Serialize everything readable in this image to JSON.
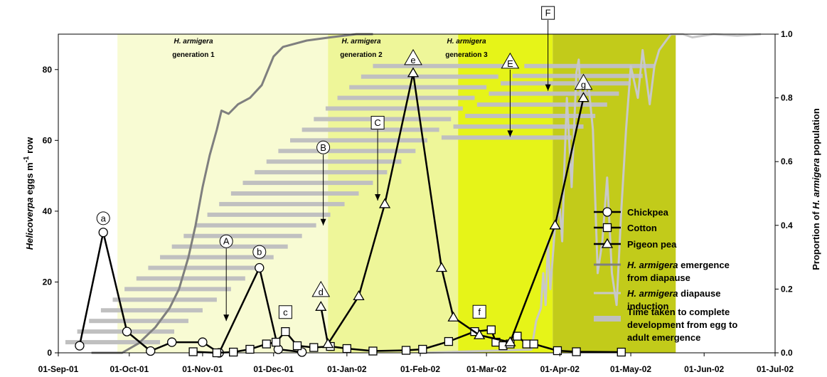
{
  "chart_data": {
    "type": "line",
    "x_axis": {
      "ticks": [
        "01-Sep-01",
        "01-Oct-01",
        "01-Nov-01",
        "01-Dec-01",
        "01-Jan-02",
        "01-Feb-02",
        "01-Mar-02",
        "01-Apr-02",
        "01-May-02",
        "01-Jun-02",
        "01-Jul-02"
      ],
      "range": [
        "2001-09-01",
        "2002-07-01"
      ]
    },
    "y_left": {
      "label_italic": "Helicoverpa",
      "label_rest": " eggs m",
      "label_sup": "-1",
      "label_end": " row",
      "ylim": [
        0,
        90
      ],
      "ticks": [
        "0",
        "20",
        "40",
        "60",
        "80"
      ]
    },
    "y_right": {
      "label_start": "Proportion of ",
      "label_italic": "H. armigera",
      "label_end": " population",
      "ylim": [
        0,
        1.0
      ],
      "ticks": [
        "0.0",
        "0.2",
        "0.4",
        "0.6",
        "0.8",
        "1.0"
      ]
    },
    "generations": [
      {
        "label_italic": "H. armigera",
        "label": "generation 1",
        "start": "2001-09-26",
        "end": "2001-12-24",
        "color": "#f8fbd3"
      },
      {
        "label_italic": "H. armigera",
        "label": "generation 2",
        "start": "2001-12-24",
        "end": "2002-02-17",
        "color": "#eef699"
      },
      {
        "label_italic": "H. armigera",
        "label": "generation 3",
        "start": "2002-02-17",
        "end": "2002-03-29",
        "color": "#e6f418"
      },
      {
        "label_italic": "",
        "label": "",
        "start": "2002-03-29",
        "end": "2002-05-20",
        "color": "#c2cb1a"
      }
    ],
    "series": [
      {
        "name": "Chickpea",
        "marker": "circle",
        "points": [
          [
            "2001-09-10",
            2
          ],
          [
            "2001-09-20",
            34
          ],
          [
            "2001-09-30",
            6
          ],
          [
            "2001-10-10",
            0.5
          ],
          [
            "2001-10-19",
            3
          ],
          [
            "2001-11-01",
            3
          ],
          [
            "2001-11-08",
            0
          ],
          [
            "2001-11-25",
            24
          ],
          [
            "2001-12-03",
            1
          ],
          [
            "2001-12-13",
            0.2
          ]
        ]
      },
      {
        "name": "Cotton",
        "marker": "square",
        "points": [
          [
            "2001-10-28",
            0.3
          ],
          [
            "2001-11-07",
            0
          ],
          [
            "2001-11-14",
            0.2
          ],
          [
            "2001-11-21",
            1
          ],
          [
            "2001-11-28",
            2.5
          ],
          [
            "2001-12-02",
            3
          ],
          [
            "2001-12-06",
            6
          ],
          [
            "2001-12-11",
            2
          ],
          [
            "2001-12-18",
            1.5
          ],
          [
            "2001-12-25",
            1.8
          ],
          [
            "2002-01-01",
            1.2
          ],
          [
            "2002-01-12",
            0.5
          ],
          [
            "2002-01-26",
            0.7
          ],
          [
            "2002-02-02",
            1
          ],
          [
            "2002-02-13",
            3.2
          ],
          [
            "2002-02-24",
            6
          ],
          [
            "2002-03-03",
            6.5
          ],
          [
            "2002-03-05",
            3
          ],
          [
            "2002-03-08",
            2
          ],
          [
            "2002-03-11",
            2.5
          ],
          [
            "2002-03-14",
            4.7
          ],
          [
            "2002-03-18",
            2.5
          ],
          [
            "2002-03-21",
            2.5
          ],
          [
            "2002-03-31",
            0.6
          ],
          [
            "2002-04-08",
            0.3
          ],
          [
            "2002-04-27",
            0.2
          ]
        ]
      },
      {
        "name": "Pigeon pea",
        "marker": "triangle",
        "points": [
          [
            "2001-12-21",
            13
          ],
          [
            "2001-12-24",
            2.5
          ],
          [
            "2002-01-06",
            16
          ],
          [
            "2002-01-17",
            42
          ],
          [
            "2002-01-29",
            79
          ],
          [
            "2002-02-10",
            24
          ],
          [
            "2002-02-15",
            10
          ],
          [
            "2002-02-26",
            5
          ],
          [
            "2002-03-11",
            3
          ],
          [
            "2002-03-30",
            36
          ],
          [
            "2002-04-11",
            72
          ]
        ]
      }
    ],
    "lines": [
      {
        "name_italic": "H. armigera",
        "name": " emergence",
        "name2": "from diapause",
        "color": "#7f7f7f",
        "points": [
          [
            "2001-09-15",
            0
          ],
          [
            "2001-09-28",
            0
          ],
          [
            "2001-10-05",
            0.03
          ],
          [
            "2001-10-12",
            0.08
          ],
          [
            "2001-10-18",
            0.14
          ],
          [
            "2001-10-22",
            0.2
          ],
          [
            "2001-10-26",
            0.3
          ],
          [
            "2001-10-29",
            0.4
          ],
          [
            "2001-11-01",
            0.52
          ],
          [
            "2001-11-04",
            0.62
          ],
          [
            "2001-11-07",
            0.7
          ],
          [
            "2001-11-09",
            0.76
          ],
          [
            "2001-11-12",
            0.75
          ],
          [
            "2001-11-16",
            0.78
          ],
          [
            "2001-11-21",
            0.8
          ],
          [
            "2001-11-26",
            0.84
          ],
          [
            "2001-12-01",
            0.93
          ],
          [
            "2001-12-05",
            0.96
          ],
          [
            "2001-12-15",
            0.98
          ],
          [
            "2001-12-25",
            0.99
          ],
          [
            "2002-01-05",
            1.0
          ],
          [
            "2002-01-12",
            1.0
          ]
        ]
      },
      {
        "name_italic": "H. armigera",
        "name": " diapause",
        "name2": "induction",
        "color": "#c8c8c8",
        "points": [
          [
            "2002-02-01",
            0
          ],
          [
            "2002-03-20",
            0.01
          ],
          [
            "2002-03-22",
            0.1
          ],
          [
            "2002-03-24",
            0.14
          ],
          [
            "2002-03-25",
            0.25
          ],
          [
            "2002-03-26",
            0.15
          ],
          [
            "2002-03-27",
            0.35
          ],
          [
            "2002-03-28",
            0.2
          ],
          [
            "2002-03-30",
            0.4
          ],
          [
            "2002-04-01",
            0.45
          ],
          [
            "2002-04-02",
            0.35
          ],
          [
            "2002-04-03",
            0.6
          ],
          [
            "2002-04-04",
            0.8
          ],
          [
            "2002-04-06",
            0.52
          ],
          [
            "2002-04-08",
            0.88
          ],
          [
            "2002-04-09",
            0.92
          ],
          [
            "2002-04-10",
            0.78
          ],
          [
            "2002-04-13",
            0.85
          ],
          [
            "2002-04-15",
            0.7
          ],
          [
            "2002-04-17",
            0.25
          ],
          [
            "2002-04-19",
            0.35
          ],
          [
            "2002-04-21",
            0.55
          ],
          [
            "2002-04-23",
            0.25
          ],
          [
            "2002-04-25",
            0.15
          ],
          [
            "2002-04-27",
            0.45
          ],
          [
            "2002-04-29",
            0.7
          ],
          [
            "2002-05-01",
            0.9
          ],
          [
            "2002-05-04",
            0.8
          ],
          [
            "2002-05-06",
            0.95
          ],
          [
            "2002-05-09",
            0.78
          ],
          [
            "2002-05-11",
            0.9
          ],
          [
            "2002-05-13",
            0.95
          ],
          [
            "2002-05-15",
            0.97
          ],
          [
            "2002-05-18",
            1.0
          ],
          [
            "2002-05-23",
            1.0
          ],
          [
            "2002-05-27",
            0.99
          ],
          [
            "2002-06-05",
            1.0
          ],
          [
            "2002-06-15",
            0.995
          ],
          [
            "2002-06-25",
            1.0
          ]
        ]
      }
    ],
    "dev_bars": [
      [
        "2001-09-04",
        "2001-10-14",
        3
      ],
      [
        "2001-09-09",
        "2001-10-20",
        6
      ],
      [
        "2001-09-14",
        "2001-10-26",
        9
      ],
      [
        "2001-09-19",
        "2001-11-01",
        12
      ],
      [
        "2001-09-24",
        "2001-11-07",
        15
      ],
      [
        "2001-09-29",
        "2001-11-13",
        18
      ],
      [
        "2001-10-04",
        "2001-11-19",
        21
      ],
      [
        "2001-10-09",
        "2001-11-25",
        24
      ],
      [
        "2001-10-14",
        "2001-12-01",
        27
      ],
      [
        "2001-10-19",
        "2001-12-07",
        30
      ],
      [
        "2001-10-24",
        "2001-12-13",
        33
      ],
      [
        "2001-10-29",
        "2001-12-19",
        36
      ],
      [
        "2001-11-03",
        "2001-12-25",
        39
      ],
      [
        "2001-11-08",
        "2001-12-31",
        42
      ],
      [
        "2001-11-13",
        "2002-01-06",
        45
      ],
      [
        "2001-11-18",
        "2002-01-12",
        48
      ],
      [
        "2001-11-23",
        "2002-01-18",
        51
      ],
      [
        "2001-11-28",
        "2002-01-24",
        54
      ],
      [
        "2001-12-03",
        "2002-01-30",
        57
      ],
      [
        "2001-12-08",
        "2002-02-04",
        60
      ],
      [
        "2001-12-13",
        "2002-02-09",
        63
      ],
      [
        "2001-12-18",
        "2002-02-14",
        66
      ],
      [
        "2001-12-23",
        "2002-02-19",
        69
      ],
      [
        "2001-12-28",
        "2002-02-24",
        72
      ],
      [
        "2002-01-02",
        "2002-03-01",
        75
      ],
      [
        "2002-01-07",
        "2002-03-06",
        78
      ],
      [
        "2002-01-12",
        "2002-03-11",
        81
      ],
      [
        "2002-02-10",
        "2002-04-06",
        60.8
      ],
      [
        "2002-02-15",
        "2002-04-11",
        63.9
      ],
      [
        "2002-02-20",
        "2002-04-16",
        66.9
      ],
      [
        "2002-02-25",
        "2002-04-21",
        70.1
      ],
      [
        "2002-03-02",
        "2002-04-26",
        73.2
      ],
      [
        "2002-03-07",
        "2002-05-01",
        76.1
      ],
      [
        "2002-03-12",
        "2002-05-06",
        78.2
      ],
      [
        "2002-03-17",
        "2002-05-11",
        81
      ]
    ],
    "point_labels": [
      {
        "text": "a",
        "shape": "circle",
        "date": "2001-09-20",
        "y": 38
      },
      {
        "text": "b",
        "shape": "circle",
        "date": "2001-11-25",
        "y": 28.5
      },
      {
        "text": "c",
        "shape": "square",
        "date": "2001-12-06",
        "y": 11.5
      },
      {
        "text": "d",
        "shape": "triangle",
        "date": "2001-12-21",
        "y": 17.5
      },
      {
        "text": "e",
        "shape": "triangle",
        "date": "2002-01-29",
        "y": 83
      },
      {
        "text": "f",
        "shape": "square",
        "date": "2002-02-26",
        "y": 11.6
      },
      {
        "text": "g",
        "shape": "triangle",
        "date": "2002-04-11",
        "y": 76
      }
    ],
    "arrows": [
      {
        "text": "A",
        "shape": "circle",
        "date": "2001-11-11",
        "label_y": 31.5,
        "tip_y": 9
      },
      {
        "text": "B",
        "shape": "circle",
        "date": "2001-12-22",
        "label_y": 58,
        "tip_y": 36
      },
      {
        "text": "C",
        "shape": "square",
        "date": "2002-01-14",
        "label_y": 65,
        "tip_y": 43
      },
      {
        "text": "E",
        "shape": "triangle",
        "date": "2002-03-11",
        "label_y": 82,
        "tip_y": 61
      },
      {
        "text": "F",
        "shape": "square",
        "date": "2002-03-27",
        "label_y": 96,
        "tip_y": 74
      }
    ],
    "legend": {
      "items": [
        {
          "type": "circle",
          "label": "Chickpea"
        },
        {
          "type": "square",
          "label": "Cotton"
        },
        {
          "type": "triangle",
          "label": "Pigeon pea"
        },
        {
          "type": "line",
          "color": "#7f7f7f",
          "label_italic": "H. armigera",
          "label": " emergence",
          "label2": "from diapause"
        },
        {
          "type": "line",
          "color": "#c8c8c8",
          "label_italic": "H. armigera",
          "label": " diapause",
          "label2": "induction"
        },
        {
          "type": "bar",
          "color": "#c0c0c0",
          "label": "Time taken to complete",
          "label2": "development from egg to",
          "label3": "adult emergence"
        }
      ]
    }
  }
}
